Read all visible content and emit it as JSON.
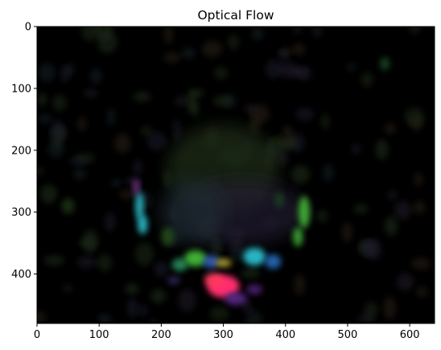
{
  "chart_data": {
    "type": "heatmap",
    "title": "Optical Flow",
    "xlabel": "",
    "ylabel": "",
    "xlim": [
      0,
      640
    ],
    "ylim": [
      480,
      0
    ],
    "x_ticks": [
      0,
      100,
      200,
      300,
      400,
      500,
      600
    ],
    "y_ticks": [
      0,
      100,
      200,
      300,
      400
    ],
    "x_tick_labels": [
      "0",
      "100",
      "200",
      "300",
      "400",
      "500",
      "600"
    ],
    "y_tick_labels": [
      "0",
      "100",
      "200",
      "300",
      "400"
    ],
    "grid": false,
    "colors": {
      "background": "#000000",
      "regions": [
        {
          "color": "#ff2d6e",
          "x": 300,
          "y": 418
        },
        {
          "color": "#2ec8d6",
          "x": 347,
          "y": 372
        },
        {
          "color": "#2ec8d6",
          "x": 172,
          "y": 300
        },
        {
          "color": "#46c23a",
          "x": 255,
          "y": 372
        },
        {
          "color": "#46c23a",
          "x": 425,
          "y": 315
        },
        {
          "color": "#5a2a8a",
          "x": 320,
          "y": 440
        },
        {
          "color": "#d6c43a",
          "x": 300,
          "y": 380
        }
      ]
    }
  }
}
